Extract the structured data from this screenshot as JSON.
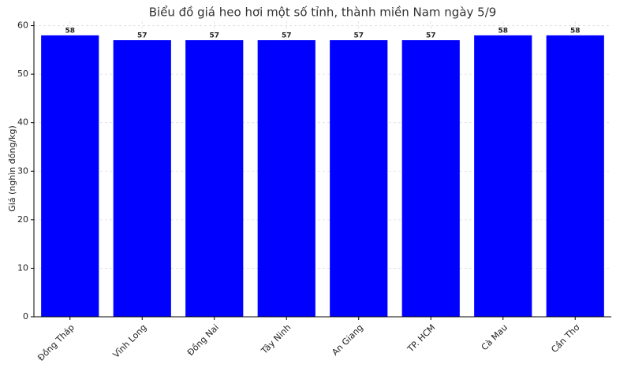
{
  "chart_data": {
    "type": "bar",
    "title": "Biểu đồ giá heo hơi một số tỉnh, thành miền Nam ngày 5/9",
    "y_label": "Giá (nghìn đồng/kg)",
    "categories": [
      "Đồng Tháp",
      "Vĩnh Long",
      "Đồng Nai",
      "Tây Ninh",
      "An Giang",
      "TP. HCM",
      "Cà Mau",
      "Cần Thơ"
    ],
    "values": [
      58,
      57,
      57,
      57,
      57,
      57,
      58,
      58
    ],
    "color": "#0000ff",
    "ylim": [
      0,
      60.9
    ],
    "yticks": [
      0,
      10,
      20,
      30,
      40,
      50,
      60
    ],
    "grid": true
  }
}
